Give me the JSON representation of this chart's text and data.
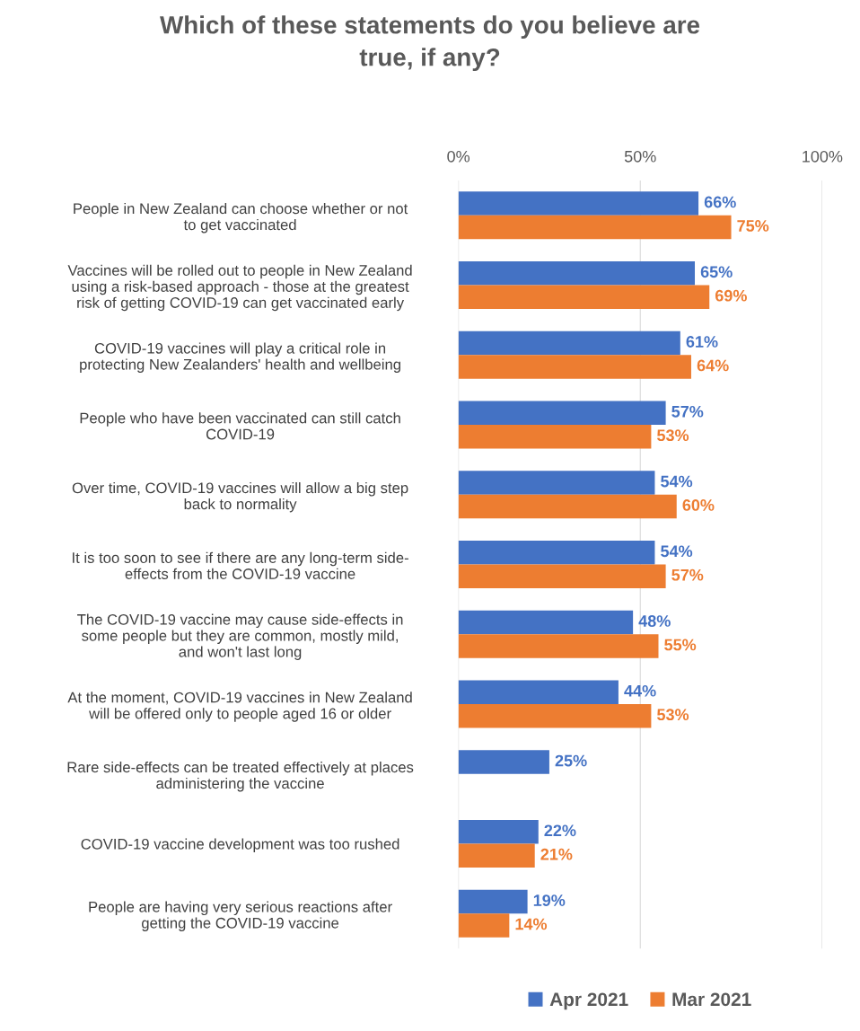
{
  "chart_data": {
    "type": "bar",
    "orientation": "horizontal",
    "title": "Which of these statements do you believe are\ntrue, if any?",
    "categories": [
      "People in New Zealand can choose whether or not\nto get vaccinated",
      "Vaccines will be rolled out to people in New Zealand\nusing a risk-based approach - those at the greatest\nrisk of getting COVID-19 can get vaccinated early",
      "COVID-19 vaccines will play a critical role in\nprotecting New Zealanders' health and wellbeing",
      "People who have been vaccinated can still catch\nCOVID-19",
      "Over time, COVID-19 vaccines will allow a big step\nback to normality",
      "It is too soon to see if there are any long-term side-\neffects from the COVID-19 vaccine",
      "The COVID-19 vaccine may cause side-effects in\nsome people but they are common, mostly mild,\nand won't last long",
      "At the moment, COVID-19 vaccines in New Zealand\nwill be offered only to people aged 16 or older",
      "Rare side-effects can be treated effectively at places\nadministering the vaccine",
      "COVID-19 vaccine development was too rushed",
      "People are having very serious reactions after\ngetting the COVID-19 vaccine"
    ],
    "series": [
      {
        "name": "Apr 2021",
        "color": "#4472c4",
        "values": [
          66,
          65,
          61,
          57,
          54,
          54,
          48,
          44,
          25,
          22,
          19
        ],
        "value_labels": [
          "66%",
          "65%",
          "61%",
          "57%",
          "54%",
          "54%",
          "48%",
          "44%",
          "25%",
          "22%",
          "19%"
        ]
      },
      {
        "name": "Mar 2021",
        "color": "#ed7d31",
        "values": [
          75,
          69,
          64,
          53,
          60,
          57,
          55,
          53,
          null,
          21,
          14
        ],
        "value_labels": [
          "75%",
          "69%",
          "64%",
          "53%",
          "60%",
          "57%",
          "55%",
          "53%",
          null,
          "21%",
          "14%"
        ]
      }
    ],
    "xlim": [
      0,
      100
    ],
    "xticks": [
      {
        "value": 0,
        "label": "0%"
      },
      {
        "value": 50,
        "label": "50%"
      },
      {
        "value": 100,
        "label": "100%"
      }
    ],
    "grid": "x",
    "legend": "bottom"
  }
}
